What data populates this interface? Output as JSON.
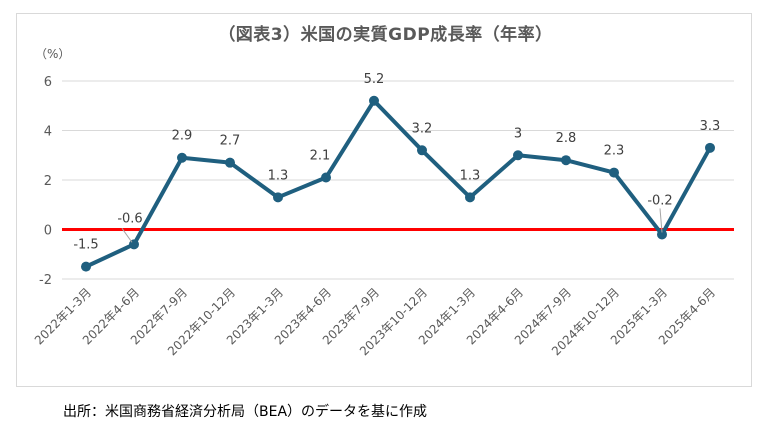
{
  "chart_data": {
    "type": "line",
    "title": "（図表3）米国の実質GDP成長率（年率）",
    "ylabel": "（%）",
    "xlabel": "",
    "ylim": [
      -2,
      6
    ],
    "yticks": [
      -2,
      0,
      2,
      4,
      6
    ],
    "grid": true,
    "legend": null,
    "categories": [
      "2022年1-3月",
      "2022年4-6月",
      "2022年7-9月",
      "2022年10-12月",
      "2023年1-3月",
      "2023年4-6月",
      "2023年7-9月",
      "2023年10-12月",
      "2024年1-3月",
      "2024年4-6月",
      "2024年7-9月",
      "2024年10-12月",
      "2025年1-3月",
      "2025年4-6月"
    ],
    "series": [
      {
        "name": "実質GDP成長率（年率）",
        "color": "#1f5f7f",
        "values": [
          -1.5,
          -0.6,
          2.9,
          2.7,
          1.3,
          2.1,
          5.2,
          3.2,
          1.3,
          3,
          2.8,
          2.3,
          -0.2,
          3.3
        ],
        "labels": [
          "-1.5",
          "-0.6",
          "2.9",
          "2.7",
          "1.3",
          "2.1",
          "5.2",
          "3.2",
          "1.3",
          "3",
          "2.8",
          "2.3",
          "-0.2",
          "3.3"
        ]
      }
    ],
    "annotations": [
      {
        "type": "hline",
        "y": 0,
        "color": "#ff0000"
      }
    ]
  },
  "title": "（図表3）米国の実質GDP成長率（年率）",
  "y_unit": "（%）",
  "source": "出所：米国商務省経済分析局（BEA）のデータを基に作成",
  "colors": {
    "line": "#1f5f7f",
    "zero_line": "#ff0000",
    "grid": "#d9d9d9",
    "text": "#595959"
  }
}
